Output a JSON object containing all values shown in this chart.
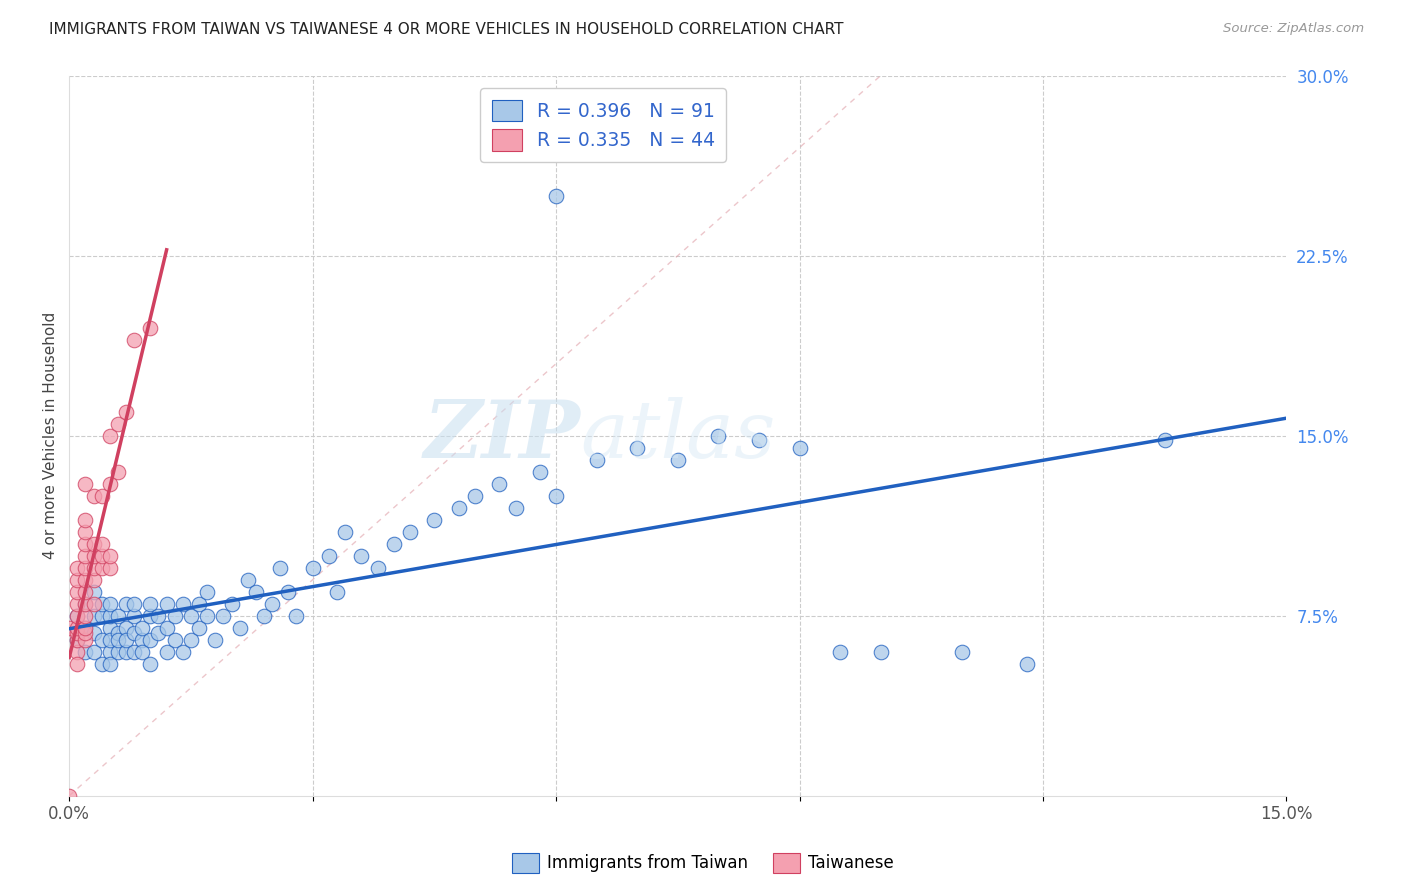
{
  "title": "IMMIGRANTS FROM TAIWAN VS TAIWANESE 4 OR MORE VEHICLES IN HOUSEHOLD CORRELATION CHART",
  "source": "Source: ZipAtlas.com",
  "ylabel": "4 or more Vehicles in Household",
  "x_min": 0.0,
  "x_max": 0.15,
  "y_min": 0.0,
  "y_max": 0.3,
  "y_ticks_right": [
    0.0,
    0.075,
    0.15,
    0.225,
    0.3
  ],
  "y_tick_labels_right": [
    "",
    "7.5%",
    "15.0%",
    "22.5%",
    "30.0%"
  ],
  "legend_blue_r": "R = 0.396",
  "legend_blue_n": "N = 91",
  "legend_pink_r": "R = 0.335",
  "legend_pink_n": "N = 44",
  "legend_label_blue": "Immigrants from Taiwan",
  "legend_label_pink": "Taiwanese",
  "blue_color": "#a8c8e8",
  "pink_color": "#f4a0b0",
  "blue_line_color": "#2060c0",
  "pink_line_color": "#d04060",
  "watermark_zip": "ZIP",
  "watermark_atlas": "atlas",
  "blue_scatter_x": [
    0.001,
    0.001,
    0.002,
    0.002,
    0.002,
    0.003,
    0.003,
    0.003,
    0.003,
    0.004,
    0.004,
    0.004,
    0.004,
    0.005,
    0.005,
    0.005,
    0.005,
    0.005,
    0.005,
    0.006,
    0.006,
    0.006,
    0.006,
    0.007,
    0.007,
    0.007,
    0.007,
    0.008,
    0.008,
    0.008,
    0.008,
    0.009,
    0.009,
    0.009,
    0.01,
    0.01,
    0.01,
    0.01,
    0.011,
    0.011,
    0.012,
    0.012,
    0.012,
    0.013,
    0.013,
    0.014,
    0.014,
    0.015,
    0.015,
    0.016,
    0.016,
    0.017,
    0.017,
    0.018,
    0.019,
    0.02,
    0.021,
    0.022,
    0.023,
    0.024,
    0.025,
    0.026,
    0.027,
    0.028,
    0.03,
    0.032,
    0.033,
    0.034,
    0.036,
    0.038,
    0.04,
    0.042,
    0.045,
    0.048,
    0.05,
    0.053,
    0.055,
    0.058,
    0.06,
    0.065,
    0.07,
    0.075,
    0.08,
    0.085,
    0.09,
    0.095,
    0.1,
    0.11,
    0.118,
    0.135,
    0.06
  ],
  "blue_scatter_y": [
    0.075,
    0.065,
    0.08,
    0.07,
    0.06,
    0.068,
    0.075,
    0.085,
    0.06,
    0.075,
    0.065,
    0.08,
    0.055,
    0.07,
    0.06,
    0.075,
    0.065,
    0.08,
    0.055,
    0.068,
    0.06,
    0.075,
    0.065,
    0.07,
    0.06,
    0.08,
    0.065,
    0.068,
    0.075,
    0.06,
    0.08,
    0.065,
    0.07,
    0.06,
    0.075,
    0.065,
    0.08,
    0.055,
    0.068,
    0.075,
    0.06,
    0.07,
    0.08,
    0.065,
    0.075,
    0.06,
    0.08,
    0.065,
    0.075,
    0.07,
    0.08,
    0.075,
    0.085,
    0.065,
    0.075,
    0.08,
    0.07,
    0.09,
    0.085,
    0.075,
    0.08,
    0.095,
    0.085,
    0.075,
    0.095,
    0.1,
    0.085,
    0.11,
    0.1,
    0.095,
    0.105,
    0.11,
    0.115,
    0.12,
    0.125,
    0.13,
    0.12,
    0.135,
    0.125,
    0.14,
    0.145,
    0.14,
    0.15,
    0.148,
    0.145,
    0.06,
    0.06,
    0.06,
    0.055,
    0.148,
    0.25
  ],
  "pink_scatter_x": [
    0.0,
    0.0,
    0.001,
    0.001,
    0.001,
    0.001,
    0.001,
    0.001,
    0.001,
    0.001,
    0.001,
    0.001,
    0.002,
    0.002,
    0.002,
    0.002,
    0.002,
    0.002,
    0.002,
    0.002,
    0.002,
    0.002,
    0.002,
    0.002,
    0.002,
    0.003,
    0.003,
    0.003,
    0.003,
    0.003,
    0.003,
    0.004,
    0.004,
    0.004,
    0.004,
    0.005,
    0.005,
    0.005,
    0.005,
    0.006,
    0.006,
    0.007,
    0.008,
    0.01
  ],
  "pink_scatter_y": [
    0.0,
    0.07,
    0.06,
    0.065,
    0.068,
    0.07,
    0.075,
    0.08,
    0.085,
    0.09,
    0.095,
    0.055,
    0.065,
    0.068,
    0.07,
    0.075,
    0.08,
    0.085,
    0.09,
    0.095,
    0.1,
    0.105,
    0.11,
    0.115,
    0.13,
    0.08,
    0.09,
    0.095,
    0.1,
    0.105,
    0.125,
    0.095,
    0.1,
    0.105,
    0.125,
    0.095,
    0.1,
    0.13,
    0.15,
    0.135,
    0.155,
    0.16,
    0.19,
    0.195
  ],
  "blue_r": 0.396,
  "pink_r": 0.335
}
